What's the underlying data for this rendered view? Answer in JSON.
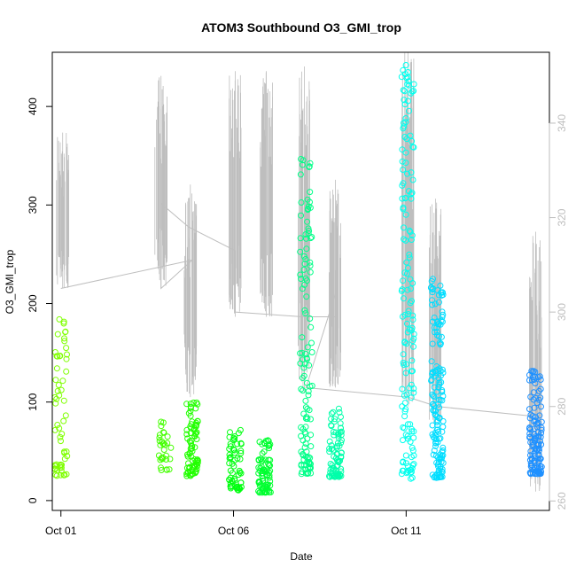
{
  "chart_data": {
    "type": "scatter",
    "title": "ATOM3 Southbound O3_GMI_trop",
    "xlabel": "Date",
    "ylabel": "O3_GMI_trop",
    "x_ticks": [
      {
        "day": 1,
        "label": "Oct 01"
      },
      {
        "day": 6,
        "label": "Oct 06"
      },
      {
        "day": 11,
        "label": "Oct 11"
      }
    ],
    "xlim": [
      0.75,
      15.15
    ],
    "ylim": [
      -10,
      455
    ],
    "y_ticks": [
      0,
      100,
      200,
      300,
      400
    ],
    "y2lim": [
      258,
      355
    ],
    "y2_ticks": [
      260,
      280,
      300,
      320,
      340
    ],
    "grid": false,
    "legend": "none",
    "colors": {
      "background_line": "#bebebe",
      "right_axis": "#bebebe",
      "points_early": "#7fff00",
      "points_mid": "#00ee44",
      "points_late": "#00ccff",
      "points_end": "#1e90ff"
    },
    "series": [
      {
        "kind": "points",
        "marker": "open-circle",
        "segments": [
          {
            "x": 1.0,
            "y_min": 25,
            "y_max": 188,
            "n": 60,
            "color": "#7fff00"
          },
          {
            "x": 4.02,
            "y_min": 30,
            "y_max": 80,
            "n": 30,
            "color": "#44ff00"
          },
          {
            "x": 4.82,
            "y_min": 25,
            "y_max": 100,
            "n": 80,
            "color": "#22ff00"
          },
          {
            "x": 6.05,
            "y_min": 10,
            "y_max": 75,
            "n": 60,
            "color": "#00ff10"
          },
          {
            "x": 6.9,
            "y_min": 8,
            "y_max": 63,
            "n": 80,
            "color": "#00ff30"
          },
          {
            "x": 8.1,
            "y_min": 27,
            "y_max": 352,
            "n": 120,
            "color": "#00ff88"
          },
          {
            "x": 8.95,
            "y_min": 24,
            "y_max": 95,
            "n": 80,
            "color": "#00ffaa"
          },
          {
            "x": 11.05,
            "y_min": 22,
            "y_max": 445,
            "n": 150,
            "color": "#00ffee"
          },
          {
            "x": 11.9,
            "y_min": 23,
            "y_max": 225,
            "n": 150,
            "color": "#00ddff"
          },
          {
            "x": 14.75,
            "y_min": 27,
            "y_max": 135,
            "n": 120,
            "color": "#1e90ff"
          }
        ]
      },
      {
        "kind": "line",
        "axis": "right",
        "color": "#bebebe",
        "polyline": [
          [
            1.0,
            305
          ],
          [
            4.8,
            311
          ],
          [
            3.9,
            305
          ],
          [
            3.9,
            323
          ],
          [
            4.7,
            318
          ],
          [
            6.05,
            313
          ],
          [
            6.05,
            300
          ],
          [
            8.0,
            299
          ],
          [
            9.0,
            299
          ],
          [
            9.0,
            305
          ],
          [
            8.1,
            284
          ],
          [
            11.05,
            282
          ],
          [
            11.9,
            280
          ],
          [
            14.6,
            278
          ]
        ],
        "spikes": [
          {
            "x": 1.05,
            "y_min": 305,
            "y_max": 338
          },
          {
            "x": 3.9,
            "y_min": 305,
            "y_max": 350
          },
          {
            "x": 4.75,
            "y_min": 282,
            "y_max": 327
          },
          {
            "x": 6.05,
            "y_min": 299,
            "y_max": 351
          },
          {
            "x": 6.95,
            "y_min": 299,
            "y_max": 351
          },
          {
            "x": 8.05,
            "y_min": 283,
            "y_max": 352
          },
          {
            "x": 8.95,
            "y_min": 284,
            "y_max": 328
          },
          {
            "x": 11.05,
            "y_min": 280,
            "y_max": 355
          },
          {
            "x": 11.85,
            "y_min": 276,
            "y_max": 324
          },
          {
            "x": 14.75,
            "y_min": 262,
            "y_max": 317
          }
        ]
      }
    ]
  }
}
